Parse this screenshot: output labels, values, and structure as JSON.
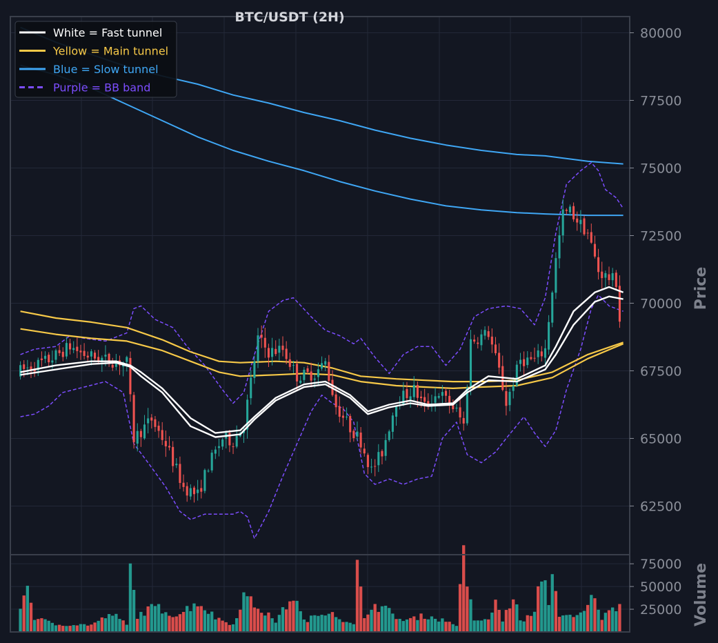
{
  "chart_data": {
    "type": "candlestick",
    "title": "BTC/USDT (2H)",
    "price_ylabel": "Price",
    "volume_ylabel": "Volume",
    "price_ylim": [
      60700,
      80600
    ],
    "volume_ylim": [
      0,
      85000
    ],
    "price_ticks": [
      "62500",
      "65000",
      "67500",
      "70000",
      "72500",
      "75000",
      "77500",
      "80000"
    ],
    "volume_ticks": [
      "25000",
      "50000",
      "75000"
    ],
    "grid": true,
    "legend_position": "top-left",
    "legend": [
      {
        "label": "White = Fast tunnel",
        "color": "#ffffff",
        "dash": false
      },
      {
        "label": "Yellow = Main tunnel",
        "color": "#f7c948",
        "dash": false
      },
      {
        "label": "Blue = Slow tunnel",
        "color": "#3fa7f5",
        "dash": false
      },
      {
        "label": "Purple = BB band",
        "color": "#7c4dff",
        "dash": true
      }
    ],
    "colors": {
      "up": "#26a69a",
      "down": "#ef5350",
      "fast": "#ffffff",
      "main": "#f7c948",
      "slow": "#3fa7f5",
      "bb": "#7c4dff",
      "background": "#131722",
      "grid": "#232838",
      "frame": "#3a3f4b"
    },
    "candle_count": 170,
    "keyframes": [
      [
        0,
        67500
      ],
      [
        8,
        67900
      ],
      [
        14,
        68400
      ],
      [
        18,
        68100
      ],
      [
        24,
        67900
      ],
      [
        30,
        67800
      ],
      [
        32,
        65000
      ],
      [
        37,
        65700
      ],
      [
        41,
        64800
      ],
      [
        46,
        63200
      ],
      [
        50,
        62900
      ],
      [
        53,
        64000
      ],
      [
        57,
        65000
      ],
      [
        60,
        64900
      ],
      [
        63,
        65500
      ],
      [
        67,
        68700
      ],
      [
        70,
        68200
      ],
      [
        74,
        68300
      ],
      [
        78,
        67300
      ],
      [
        83,
        67400
      ],
      [
        86,
        67800
      ],
      [
        89,
        66200
      ],
      [
        93,
        65400
      ],
      [
        96,
        64900
      ],
      [
        99,
        63800
      ],
      [
        102,
        64500
      ],
      [
        106,
        66400
      ],
      [
        111,
        66800
      ],
      [
        114,
        66200
      ],
      [
        118,
        66700
      ],
      [
        123,
        66000
      ],
      [
        125,
        65500
      ],
      [
        127,
        68600
      ],
      [
        132,
        68900
      ],
      [
        135,
        67500
      ],
      [
        137,
        66300
      ],
      [
        141,
        67900
      ],
      [
        145,
        67900
      ],
      [
        148,
        68300
      ],
      [
        151,
        71600
      ],
      [
        153,
        73300
      ],
      [
        155,
        73400
      ],
      [
        160,
        72600
      ],
      [
        163,
        71200
      ],
      [
        165,
        71000
      ],
      [
        168,
        70800
      ],
      [
        169,
        69400
      ]
    ],
    "volume_keyframes": [
      [
        0,
        30000
      ],
      [
        2,
        50000
      ],
      [
        4,
        16000
      ],
      [
        10,
        8000
      ],
      [
        20,
        8000
      ],
      [
        26,
        20000
      ],
      [
        30,
        8000
      ],
      [
        31,
        68000
      ],
      [
        33,
        18000
      ],
      [
        38,
        28000
      ],
      [
        44,
        18000
      ],
      [
        50,
        33000
      ],
      [
        55,
        16000
      ],
      [
        60,
        8000
      ],
      [
        63,
        40000
      ],
      [
        66,
        30000
      ],
      [
        72,
        12000
      ],
      [
        77,
        40000
      ],
      [
        80,
        12000
      ],
      [
        85,
        20000
      ],
      [
        87,
        25000
      ],
      [
        92,
        10000
      ],
      [
        94,
        8000
      ],
      [
        95,
        70000
      ],
      [
        97,
        16000
      ],
      [
        99,
        30000
      ],
      [
        103,
        25000
      ],
      [
        108,
        12000
      ],
      [
        114,
        18000
      ],
      [
        120,
        12000
      ],
      [
        123,
        8000
      ],
      [
        125,
        82000
      ],
      [
        126,
        48000
      ],
      [
        128,
        14000
      ],
      [
        132,
        12000
      ],
      [
        134,
        35000
      ],
      [
        136,
        12000
      ],
      [
        139,
        40000
      ],
      [
        141,
        12000
      ],
      [
        145,
        20000
      ],
      [
        147,
        65000
      ],
      [
        149,
        35000
      ],
      [
        150,
        65000
      ],
      [
        152,
        20000
      ],
      [
        156,
        15000
      ],
      [
        159,
        22000
      ],
      [
        162,
        42000
      ],
      [
        164,
        15000
      ],
      [
        169,
        32000
      ]
    ],
    "fast_tunnel": {
      "upper": [
        [
          0,
          67450
        ],
        [
          10,
          67700
        ],
        [
          20,
          67850
        ],
        [
          27,
          67850
        ],
        [
          31,
          67700
        ],
        [
          34,
          67450
        ],
        [
          40,
          66850
        ],
        [
          48,
          65750
        ],
        [
          55,
          65200
        ],
        [
          62,
          65300
        ],
        [
          66,
          65800
        ],
        [
          72,
          66500
        ],
        [
          80,
          67000
        ],
        [
          86,
          67100
        ],
        [
          93,
          66600
        ],
        [
          98,
          66000
        ],
        [
          104,
          66250
        ],
        [
          110,
          66400
        ],
        [
          115,
          66250
        ],
        [
          122,
          66300
        ],
        [
          126,
          66800
        ],
        [
          132,
          67300
        ],
        [
          140,
          67200
        ],
        [
          148,
          67700
        ],
        [
          151,
          68400
        ],
        [
          156,
          69700
        ],
        [
          162,
          70400
        ],
        [
          166,
          70600
        ],
        [
          170,
          70400
        ]
      ],
      "lower": [
        [
          0,
          67350
        ],
        [
          10,
          67550
        ],
        [
          20,
          67750
        ],
        [
          27,
          67800
        ],
        [
          31,
          67650
        ],
        [
          34,
          67300
        ],
        [
          40,
          66700
        ],
        [
          48,
          65450
        ],
        [
          55,
          65050
        ],
        [
          62,
          65150
        ],
        [
          66,
          65700
        ],
        [
          72,
          66400
        ],
        [
          80,
          66900
        ],
        [
          86,
          67000
        ],
        [
          93,
          66500
        ],
        [
          98,
          65900
        ],
        [
          104,
          66150
        ],
        [
          110,
          66300
        ],
        [
          115,
          66200
        ],
        [
          122,
          66250
        ],
        [
          126,
          66700
        ],
        [
          132,
          67150
        ],
        [
          140,
          67100
        ],
        [
          148,
          67550
        ],
        [
          151,
          68100
        ],
        [
          156,
          69200
        ],
        [
          162,
          70050
        ],
        [
          166,
          70250
        ],
        [
          170,
          70150
        ]
      ]
    },
    "main_tunnel": {
      "upper": [
        [
          0,
          69700
        ],
        [
          10,
          69450
        ],
        [
          20,
          69300
        ],
        [
          30,
          69100
        ],
        [
          40,
          68650
        ],
        [
          48,
          68200
        ],
        [
          56,
          67850
        ],
        [
          62,
          67800
        ],
        [
          72,
          67850
        ],
        [
          80,
          67800
        ],
        [
          88,
          67600
        ],
        [
          96,
          67300
        ],
        [
          106,
          67200
        ],
        [
          114,
          67150
        ],
        [
          122,
          67100
        ],
        [
          130,
          67100
        ],
        [
          140,
          67150
        ],
        [
          150,
          67450
        ],
        [
          160,
          68100
        ],
        [
          170,
          68550
        ]
      ],
      "lower": [
        [
          0,
          69050
        ],
        [
          10,
          68850
        ],
        [
          20,
          68700
        ],
        [
          30,
          68600
        ],
        [
          40,
          68250
        ],
        [
          48,
          67850
        ],
        [
          56,
          67450
        ],
        [
          62,
          67300
        ],
        [
          72,
          67350
        ],
        [
          80,
          67400
        ],
        [
          88,
          67350
        ],
        [
          96,
          67100
        ],
        [
          106,
          66950
        ],
        [
          114,
          66900
        ],
        [
          122,
          66850
        ],
        [
          130,
          66900
        ],
        [
          140,
          66950
        ],
        [
          150,
          67250
        ],
        [
          160,
          67950
        ],
        [
          170,
          68500
        ]
      ]
    },
    "slow_tunnel": {
      "upper": [
        [
          0,
          80200
        ],
        [
          10,
          79650
        ],
        [
          20,
          79200
        ],
        [
          30,
          78750
        ],
        [
          40,
          78400
        ],
        [
          50,
          78100
        ],
        [
          60,
          77700
        ],
        [
          70,
          77400
        ],
        [
          80,
          77050
        ],
        [
          90,
          76750
        ],
        [
          100,
          76400
        ],
        [
          110,
          76100
        ],
        [
          120,
          75850
        ],
        [
          130,
          75650
        ],
        [
          140,
          75500
        ],
        [
          148,
          75450
        ],
        [
          160,
          75250
        ],
        [
          170,
          75150
        ]
      ],
      "lower": [
        [
          0,
          78800
        ],
        [
          10,
          78450
        ],
        [
          20,
          77950
        ],
        [
          30,
          77350
        ],
        [
          40,
          76750
        ],
        [
          50,
          76150
        ],
        [
          60,
          75650
        ],
        [
          70,
          75250
        ],
        [
          80,
          74900
        ],
        [
          90,
          74500
        ],
        [
          100,
          74150
        ],
        [
          110,
          73850
        ],
        [
          120,
          73600
        ],
        [
          130,
          73450
        ],
        [
          140,
          73350
        ],
        [
          148,
          73300
        ],
        [
          160,
          73250
        ],
        [
          170,
          73250
        ]
      ]
    },
    "bb_band": {
      "upper": [
        [
          0,
          68100
        ],
        [
          4,
          68300
        ],
        [
          10,
          68400
        ],
        [
          14,
          68800
        ],
        [
          18,
          68700
        ],
        [
          24,
          68600
        ],
        [
          30,
          68900
        ],
        [
          32,
          69800
        ],
        [
          34,
          69900
        ],
        [
          38,
          69400
        ],
        [
          43,
          69100
        ],
        [
          47,
          68400
        ],
        [
          52,
          67700
        ],
        [
          57,
          66800
        ],
        [
          60,
          66300
        ],
        [
          63,
          66700
        ],
        [
          66,
          68100
        ],
        [
          70,
          69700
        ],
        [
          74,
          70100
        ],
        [
          77,
          70200
        ],
        [
          82,
          69500
        ],
        [
          86,
          69000
        ],
        [
          90,
          68800
        ],
        [
          94,
          68500
        ],
        [
          96,
          68700
        ],
        [
          100,
          68000
        ],
        [
          104,
          67400
        ],
        [
          108,
          68100
        ],
        [
          112,
          68400
        ],
        [
          116,
          68400
        ],
        [
          120,
          67700
        ],
        [
          124,
          68300
        ],
        [
          128,
          69500
        ],
        [
          132,
          69800
        ],
        [
          137,
          69900
        ],
        [
          141,
          69800
        ],
        [
          143,
          69500
        ],
        [
          145,
          69200
        ],
        [
          148,
          70200
        ],
        [
          151,
          72600
        ],
        [
          154,
          74400
        ],
        [
          158,
          74900
        ],
        [
          161,
          75200
        ],
        [
          163,
          74900
        ],
        [
          165,
          74200
        ],
        [
          168,
          73900
        ],
        [
          170,
          73500
        ]
      ],
      "lower": [
        [
          0,
          65800
        ],
        [
          4,
          65900
        ],
        [
          8,
          66200
        ],
        [
          12,
          66700
        ],
        [
          18,
          66900
        ],
        [
          24,
          67100
        ],
        [
          29,
          66700
        ],
        [
          32,
          64800
        ],
        [
          36,
          64100
        ],
        [
          41,
          63200
        ],
        [
          45,
          62300
        ],
        [
          48,
          62000
        ],
        [
          52,
          62200
        ],
        [
          56,
          62200
        ],
        [
          60,
          62200
        ],
        [
          62,
          62300
        ],
        [
          64,
          62100
        ],
        [
          66,
          61300
        ],
        [
          70,
          62300
        ],
        [
          74,
          63600
        ],
        [
          78,
          64800
        ],
        [
          82,
          66000
        ],
        [
          85,
          66600
        ],
        [
          88,
          66300
        ],
        [
          91,
          66100
        ],
        [
          94,
          65600
        ],
        [
          97,
          63700
        ],
        [
          100,
          63300
        ],
        [
          104,
          63500
        ],
        [
          108,
          63300
        ],
        [
          112,
          63500
        ],
        [
          116,
          63600
        ],
        [
          119,
          65000
        ],
        [
          123,
          65600
        ],
        [
          126,
          64400
        ],
        [
          130,
          64100
        ],
        [
          134,
          64500
        ],
        [
          137,
          65000
        ],
        [
          142,
          65800
        ],
        [
          145,
          65200
        ],
        [
          148,
          64700
        ],
        [
          151,
          65300
        ],
        [
          154,
          66800
        ],
        [
          158,
          68300
        ],
        [
          161,
          69800
        ],
        [
          163,
          70300
        ],
        [
          166,
          69900
        ],
        [
          170,
          69700
        ]
      ]
    }
  }
}
